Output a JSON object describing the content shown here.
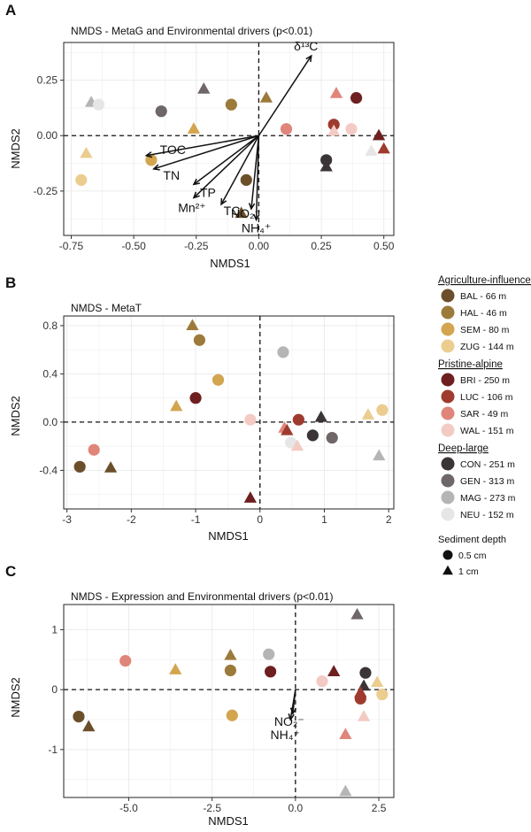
{
  "colors": {
    "BAL": "#6b4f2a",
    "HAL": "#9c7a3a",
    "SEM": "#d3a54f",
    "ZUG": "#ebcd8f",
    "BRI": "#6e1f1f",
    "LUC": "#9e3b2e",
    "SAR": "#e0857a",
    "WAL": "#f3cbc4",
    "CON": "#3a3436",
    "GEN": "#6f6667",
    "MAG": "#b5b5b5",
    "NEU": "#e6e6e6"
  },
  "legend": {
    "groups": [
      {
        "title": "Agriculture-influenced",
        "items": [
          {
            "site": "BAL",
            "label": "BAL - 66 m"
          },
          {
            "site": "HAL",
            "label": "HAL - 46 m"
          },
          {
            "site": "SEM",
            "label": "SEM - 80 m"
          },
          {
            "site": "ZUG",
            "label": "ZUG - 144 m"
          }
        ]
      },
      {
        "title": "Pristine-alpine",
        "items": [
          {
            "site": "BRI",
            "label": "BRI - 250 m"
          },
          {
            "site": "LUC",
            "label": "LUC - 106 m"
          },
          {
            "site": "SAR",
            "label": "SAR - 49 m"
          },
          {
            "site": "WAL",
            "label": "WAL - 151 m"
          }
        ]
      },
      {
        "title": "Deep-large",
        "items": [
          {
            "site": "CON",
            "label": "CON - 251 m"
          },
          {
            "site": "GEN",
            "label": "GEN - 313 m"
          },
          {
            "site": "MAG",
            "label": "MAG - 273 m"
          },
          {
            "site": "NEU",
            "label": "NEU - 152 m"
          }
        ]
      }
    ],
    "depth_title": "Sediment depth",
    "depth_items": [
      {
        "shape": "circle",
        "label": "0.5 cm"
      },
      {
        "shape": "triangle",
        "label": "1 cm"
      }
    ]
  },
  "chart_data": [
    {
      "panel": "A",
      "type": "scatter",
      "title": "NMDS - MetaG and Environmental drivers (p<0.01)",
      "xlabel": "NMDS1",
      "ylabel": "NMDS2",
      "xlim": [
        -0.78,
        0.54
      ],
      "ylim": [
        -0.45,
        0.42
      ],
      "xticks": [
        -0.75,
        -0.5,
        -0.25,
        0.0,
        0.25,
        0.5
      ],
      "xtick_labels": [
        "-0.75",
        "-0.50",
        "-0.25",
        "0.00",
        "0.25",
        "0.50"
      ],
      "yticks": [
        -0.25,
        0.0,
        0.25
      ],
      "ytick_labels": [
        "-0.25",
        "0.00",
        "0.25"
      ],
      "vectors": [
        {
          "label": "δ¹³C",
          "x": 0.21,
          "y": 0.36
        },
        {
          "label": "TOC",
          "x": -0.45,
          "y": -0.09
        },
        {
          "label": "TN",
          "x": -0.42,
          "y": -0.15
        },
        {
          "label": "TP",
          "x": -0.26,
          "y": -0.22
        },
        {
          "label": "Mn²⁺",
          "x": -0.26,
          "y": -0.28
        },
        {
          "label": "TC",
          "x": -0.15,
          "y": -0.31
        },
        {
          "label": "NO₂⁻",
          "x": -0.03,
          "y": -0.33
        },
        {
          "label": "NH₄⁺",
          "x": -0.01,
          "y": -0.38
        }
      ],
      "points": [
        {
          "site": "ZUG",
          "shape": "circle",
          "x": -0.71,
          "y": -0.2
        },
        {
          "site": "ZUG",
          "shape": "triangle",
          "x": -0.69,
          "y": -0.08
        },
        {
          "site": "MAG",
          "shape": "triangle",
          "x": -0.67,
          "y": 0.15
        },
        {
          "site": "NEU",
          "shape": "circle",
          "x": -0.64,
          "y": 0.14
        },
        {
          "site": "GEN",
          "shape": "circle",
          "x": -0.39,
          "y": 0.11
        },
        {
          "site": "SEM",
          "shape": "circle",
          "x": -0.43,
          "y": -0.11
        },
        {
          "site": "SEM",
          "shape": "triangle",
          "x": -0.26,
          "y": 0.03
        },
        {
          "site": "GEN",
          "shape": "triangle",
          "x": -0.22,
          "y": 0.21
        },
        {
          "site": "HAL",
          "shape": "circle",
          "x": -0.11,
          "y": 0.14
        },
        {
          "site": "BAL",
          "shape": "circle",
          "x": -0.05,
          "y": -0.2
        },
        {
          "site": "BAL",
          "shape": "triangle",
          "x": -0.07,
          "y": -0.35
        },
        {
          "site": "HAL",
          "shape": "triangle",
          "x": 0.03,
          "y": 0.17
        },
        {
          "site": "SAR",
          "shape": "circle",
          "x": 0.11,
          "y": 0.03
        },
        {
          "site": "SAR",
          "shape": "triangle",
          "x": 0.31,
          "y": 0.19
        },
        {
          "site": "LUC",
          "shape": "circle",
          "x": 0.3,
          "y": 0.05
        },
        {
          "site": "WAL",
          "shape": "triangle",
          "x": 0.3,
          "y": 0.02
        },
        {
          "site": "CON",
          "shape": "circle",
          "x": 0.27,
          "y": -0.11
        },
        {
          "site": "CON",
          "shape": "triangle",
          "x": 0.27,
          "y": -0.14
        },
        {
          "site": "BRI",
          "shape": "circle",
          "x": 0.39,
          "y": 0.17
        },
        {
          "site": "WAL",
          "shape": "circle",
          "x": 0.37,
          "y": 0.03
        },
        {
          "site": "NEU",
          "shape": "triangle",
          "x": 0.45,
          "y": -0.07
        },
        {
          "site": "BRI",
          "shape": "triangle",
          "x": 0.48,
          "y": 0.0
        },
        {
          "site": "LUC",
          "shape": "triangle",
          "x": 0.5,
          "y": -0.06
        }
      ]
    },
    {
      "panel": "B",
      "type": "scatter",
      "title": "NMDS - MetaT",
      "xlabel": "NMDS1",
      "ylabel": "NMDS2",
      "xlim": [
        -3.05,
        2.08
      ],
      "ylim": [
        -0.72,
        0.88
      ],
      "xticks": [
        -3,
        -2,
        -1,
        0,
        1,
        2
      ],
      "xtick_labels": [
        "-3",
        "-2",
        "-1",
        "0",
        "1",
        "2"
      ],
      "yticks": [
        -0.4,
        0.0,
        0.4,
        0.8
      ],
      "ytick_labels": [
        "-0.4",
        "0.0",
        "0.4",
        "0.8"
      ],
      "points": [
        {
          "site": "BAL",
          "shape": "circle",
          "x": -2.8,
          "y": -0.37
        },
        {
          "site": "SAR",
          "shape": "circle",
          "x": -2.58,
          "y": -0.23
        },
        {
          "site": "BAL",
          "shape": "triangle",
          "x": -2.32,
          "y": -0.38
        },
        {
          "site": "SEM",
          "shape": "triangle",
          "x": -1.3,
          "y": 0.13
        },
        {
          "site": "HAL",
          "shape": "triangle",
          "x": -1.05,
          "y": 0.8
        },
        {
          "site": "HAL",
          "shape": "circle",
          "x": -0.94,
          "y": 0.68
        },
        {
          "site": "BRI",
          "shape": "circle",
          "x": -1.0,
          "y": 0.2
        },
        {
          "site": "SEM",
          "shape": "circle",
          "x": -0.65,
          "y": 0.35
        },
        {
          "site": "WAL",
          "shape": "circle",
          "x": -0.15,
          "y": 0.02
        },
        {
          "site": "BRI",
          "shape": "triangle",
          "x": -0.15,
          "y": -0.63
        },
        {
          "site": "MAG",
          "shape": "circle",
          "x": 0.36,
          "y": 0.58
        },
        {
          "site": "SAR",
          "shape": "triangle",
          "x": 0.38,
          "y": -0.05
        },
        {
          "site": "LUC",
          "shape": "triangle",
          "x": 0.42,
          "y": -0.07
        },
        {
          "site": "LUC",
          "shape": "circle",
          "x": 0.6,
          "y": 0.02
        },
        {
          "site": "NEU",
          "shape": "circle",
          "x": 0.48,
          "y": -0.17
        },
        {
          "site": "WAL",
          "shape": "triangle",
          "x": 0.58,
          "y": -0.2
        },
        {
          "site": "CON",
          "shape": "circle",
          "x": 0.82,
          "y": -0.11
        },
        {
          "site": "CON",
          "shape": "triangle",
          "x": 0.95,
          "y": 0.04
        },
        {
          "site": "GEN",
          "shape": "circle",
          "x": 1.12,
          "y": -0.13
        },
        {
          "site": "ZUG",
          "shape": "triangle",
          "x": 1.68,
          "y": 0.06
        },
        {
          "site": "ZUG",
          "shape": "circle",
          "x": 1.9,
          "y": 0.1
        },
        {
          "site": "MAG",
          "shape": "triangle",
          "x": 1.85,
          "y": -0.28
        }
      ]
    },
    {
      "panel": "C",
      "type": "scatter",
      "title": "NMDS - Expression and Environmental drivers (p<0.01)",
      "xlabel": "NMDS1",
      "ylabel": "NMDS2",
      "xlim": [
        -6.95,
        2.95
      ],
      "ylim": [
        -1.8,
        1.42
      ],
      "xticks": [
        -5.0,
        -2.5,
        0.0,
        2.5
      ],
      "xtick_labels": [
        "-5.0",
        "-2.5",
        "0.0",
        "2.5"
      ],
      "yticks": [
        -1,
        0,
        1
      ],
      "ytick_labels": [
        "-1",
        "0",
        "1"
      ],
      "vectors": [
        {
          "label": "NO₂⁻",
          "x": -0.08,
          "y": -0.4
        },
        {
          "label": "NH₄⁺",
          "x": -0.15,
          "y": -0.5
        }
      ],
      "points": [
        {
          "site": "BAL",
          "shape": "circle",
          "x": -6.5,
          "y": -0.45
        },
        {
          "site": "BAL",
          "shape": "triangle",
          "x": -6.2,
          "y": -0.62
        },
        {
          "site": "SAR",
          "shape": "circle",
          "x": -5.1,
          "y": 0.48
        },
        {
          "site": "SEM",
          "shape": "triangle",
          "x": -3.6,
          "y": 0.33
        },
        {
          "site": "HAL",
          "shape": "triangle",
          "x": -1.95,
          "y": 0.57
        },
        {
          "site": "HAL",
          "shape": "circle",
          "x": -1.95,
          "y": 0.32
        },
        {
          "site": "SEM",
          "shape": "circle",
          "x": -1.9,
          "y": -0.43
        },
        {
          "site": "MAG",
          "shape": "circle",
          "x": -0.8,
          "y": 0.59
        },
        {
          "site": "BRI",
          "shape": "circle",
          "x": -0.75,
          "y": 0.3
        },
        {
          "site": "WAL",
          "shape": "circle",
          "x": 0.8,
          "y": 0.14
        },
        {
          "site": "BRI",
          "shape": "triangle",
          "x": 1.15,
          "y": 0.3
        },
        {
          "site": "GEN",
          "shape": "triangle",
          "x": 1.85,
          "y": 1.25
        },
        {
          "site": "CON",
          "shape": "circle",
          "x": 2.1,
          "y": 0.28
        },
        {
          "site": "CON",
          "shape": "triangle",
          "x": 2.05,
          "y": 0.06
        },
        {
          "site": "LUC",
          "shape": "triangle",
          "x": 1.95,
          "y": -0.05
        },
        {
          "site": "LUC",
          "shape": "circle",
          "x": 1.95,
          "y": -0.15
        },
        {
          "site": "ZUG",
          "shape": "triangle",
          "x": 2.45,
          "y": 0.12
        },
        {
          "site": "ZUG",
          "shape": "circle",
          "x": 2.6,
          "y": -0.08
        },
        {
          "site": "WAL",
          "shape": "triangle",
          "x": 2.05,
          "y": -0.45
        },
        {
          "site": "SAR",
          "shape": "triangle",
          "x": 1.5,
          "y": -0.75
        },
        {
          "site": "MAG",
          "shape": "triangle",
          "x": 1.5,
          "y": -1.7
        }
      ]
    }
  ]
}
